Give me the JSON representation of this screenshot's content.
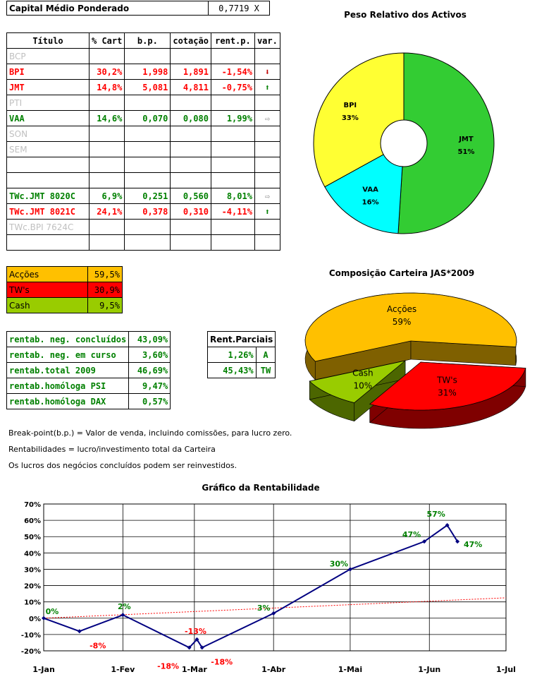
{
  "header": {
    "label": "Capital Médio Ponderado",
    "value": "0,7719 X"
  },
  "assets": {
    "columns": [
      "Título",
      "% Cart",
      "b.p.",
      "cotação",
      "rent.p.",
      "var."
    ],
    "rows": [
      {
        "name": "BCP",
        "pct": "",
        "bp": "",
        "cot": "",
        "rent": "",
        "var": "",
        "color": "gray"
      },
      {
        "name": "BPI",
        "pct": "30,2%",
        "bp": "1,998",
        "cot": "1,891",
        "rent": "-1,54%",
        "var": "down",
        "color": "red"
      },
      {
        "name": "JMT",
        "pct": "14,8%",
        "bp": "5,081",
        "cot": "4,811",
        "rent": "-0,75%",
        "var": "up",
        "color": "red"
      },
      {
        "name": "PTI",
        "pct": "",
        "bp": "",
        "cot": "",
        "rent": "",
        "var": "",
        "color": "gray"
      },
      {
        "name": "VAA",
        "pct": "14,6%",
        "bp": "0,070",
        "cot": "0,080",
        "rent": "1,99%",
        "var": "right",
        "color": "green"
      },
      {
        "name": "SON",
        "pct": "",
        "bp": "",
        "cot": "",
        "rent": "",
        "var": "",
        "color": "gray"
      },
      {
        "name": "SEM",
        "pct": "",
        "bp": "",
        "cot": "",
        "rent": "",
        "var": "",
        "color": "gray"
      },
      {
        "name": "",
        "pct": "",
        "bp": "",
        "cot": "",
        "rent": "",
        "var": "",
        "color": "gray"
      },
      {
        "name": "",
        "pct": "",
        "bp": "",
        "cot": "",
        "rent": "",
        "var": "",
        "color": "gray"
      },
      {
        "name": "TWc.JMT 8020C",
        "pct": "6,9%",
        "bp": "0,251",
        "cot": "0,560",
        "rent": "8,01%",
        "var": "right",
        "color": "green"
      },
      {
        "name": "TWc.JMT 8021C",
        "pct": "24,1%",
        "bp": "0,378",
        "cot": "0,310",
        "rent": "-4,11%",
        "var": "up",
        "color": "red"
      },
      {
        "name": "TWc.BPI 7624C",
        "pct": "",
        "bp": "",
        "cot": "",
        "rent": "",
        "var": "",
        "color": "gray"
      },
      {
        "name": "",
        "pct": "",
        "bp": "",
        "cot": "",
        "rent": "",
        "var": "",
        "color": "gray"
      }
    ]
  },
  "composition": [
    {
      "label": "Acções",
      "value": "59,5%",
      "color": "#ffc000"
    },
    {
      "label": "TW's",
      "value": "30,9%",
      "color": "#ff0000"
    },
    {
      "label": "Cash",
      "value": "9,5%",
      "color": "#99cc00"
    }
  ],
  "returns": [
    {
      "label": "rentab. neg. concluídos",
      "value": "43,09%"
    },
    {
      "label": "rentab. neg. em curso",
      "value": "3,60%"
    },
    {
      "label": "rentab.total 2009",
      "value": "46,69%"
    },
    {
      "label": "rentab.homóloga PSI",
      "value": "9,47%"
    },
    {
      "label": "rentab.homóloga DAX",
      "value": "0,57%"
    }
  ],
  "partial": {
    "header": "Rent.Parciais",
    "rows": [
      {
        "value": "1,26%",
        "tag": "A"
      },
      {
        "value": "45,43%",
        "tag": "TW"
      }
    ]
  },
  "notes": [
    "Break-point(b.p.) = Valor de venda, incluindo comissões, para lucro zero.",
    "Rentabilidades = lucro/investimento total da Carteira",
    "Os lucros dos negócios concluídos podem ser reinvestidos."
  ],
  "chart_data": [
    {
      "type": "pie",
      "variant": "doughnut",
      "title": "Peso Relativo dos Activos",
      "slices": [
        {
          "label": "JMT",
          "value": 51,
          "display": "51%",
          "color": "#33cc33"
        },
        {
          "label": "VAA",
          "value": 16,
          "display": "16%",
          "color": "#00ffff"
        },
        {
          "label": "BPI",
          "value": 33,
          "display": "33%",
          "color": "#ffff33"
        }
      ]
    },
    {
      "type": "pie",
      "variant": "3d-exploded",
      "title": "Composição Carteira JAS*2009",
      "slices": [
        {
          "label": "Acções",
          "value": 59,
          "display": "59%",
          "color": "#ffc000"
        },
        {
          "label": "TW's",
          "value": 31,
          "display": "31%",
          "color": "#ff0000"
        },
        {
          "label": "Cash",
          "value": 10,
          "display": "10%",
          "color": "#99cc00"
        }
      ]
    },
    {
      "type": "line",
      "title": "Gráfico da Rentabilidade",
      "xlabels": [
        "1-Jan",
        "1-Fev",
        "1-Mar",
        "1-Abr",
        "1-Mai",
        "1-Jun",
        "1-Jul"
      ],
      "ylim": [
        -20,
        70
      ],
      "ytick_labels": [
        "70%",
        "60%",
        "50%",
        "40%",
        "30%",
        "20%",
        "10%",
        "0%",
        "-10%",
        "-20%"
      ],
      "grid": true,
      "series": [
        {
          "points": [
            {
              "x": "2009-01-01",
              "y": 0,
              "label": "0%"
            },
            {
              "x": "2009-01-15",
              "y": -8,
              "label": "-8%"
            },
            {
              "x": "2009-02-01",
              "y": 2,
              "label": "2%"
            },
            {
              "x": "2009-02-27",
              "y": -18,
              "label": "-18%"
            },
            {
              "x": "2009-03-02",
              "y": -13,
              "label": "-13%"
            },
            {
              "x": "2009-03-04",
              "y": -18,
              "label": "-18%"
            },
            {
              "x": "2009-04-01",
              "y": 3,
              "label": "3%"
            },
            {
              "x": "2009-05-01",
              "y": 30,
              "label": "30%"
            },
            {
              "x": "2009-05-30",
              "y": 47,
              "label": "47%"
            },
            {
              "x": "2009-06-08",
              "y": 57,
              "label": "57%"
            },
            {
              "x": "2009-06-12",
              "y": 47,
              "label": "47%"
            }
          ],
          "color": "#000080"
        }
      ],
      "trendline": {
        "style": "dotted",
        "color": "#ff0000",
        "from": [
          "2009-01-01",
          0
        ],
        "to": [
          "2009-07-01",
          12.5
        ]
      }
    }
  ],
  "colors": {
    "red": "#ff0000",
    "green": "#008000",
    "gray": "#c0c0c0",
    "arrow_down": "#c00000",
    "arrow_up": "#008000",
    "arrow_right": "#808080"
  }
}
